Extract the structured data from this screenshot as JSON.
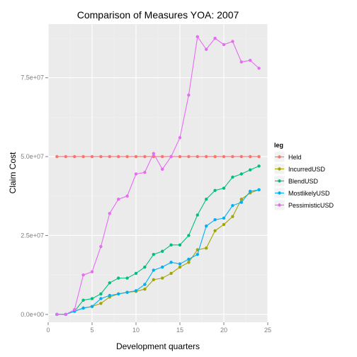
{
  "chart_data": {
    "type": "line",
    "title": "Comparison of Measures  YOA: 2007",
    "xlabel": "Development quarters",
    "ylabel": "Claim Cost",
    "xlim": [
      0,
      25
    ],
    "ylim": [
      -2500000,
      92000000
    ],
    "x_ticks": [
      0,
      5,
      10,
      15,
      20,
      25
    ],
    "x_tick_labels": [
      "0",
      "5",
      "10",
      "15",
      "20",
      "25"
    ],
    "y_ticks": [
      0,
      25000000,
      50000000,
      75000000
    ],
    "y_tick_labels": [
      "0.0e+00",
      "2.5e+07",
      "5.0e+07",
      "7.5e+07"
    ],
    "grid": true,
    "legend": {
      "title": "leg",
      "position": "right"
    },
    "x": [
      1,
      2,
      3,
      4,
      5,
      6,
      7,
      8,
      9,
      10,
      11,
      12,
      13,
      14,
      15,
      16,
      17,
      18,
      19,
      20,
      21,
      22,
      23,
      24
    ],
    "series": [
      {
        "name": "Held",
        "color": "#F8766D",
        "values": [
          50000000,
          50000000,
          50000000,
          50000000,
          50000000,
          50000000,
          50000000,
          50000000,
          50000000,
          50000000,
          50000000,
          50000000,
          50000000,
          50000000,
          50000000,
          50000000,
          50000000,
          50000000,
          50000000,
          50000000,
          50000000,
          50000000,
          50000000,
          50000000
        ]
      },
      {
        "name": "IncurredUSD",
        "color": "#A3A500",
        "values": [
          0,
          0,
          1000000,
          2000000,
          2500000,
          3500000,
          5500000,
          6500000,
          7000000,
          7300000,
          8000000,
          11000000,
          11500000,
          13000000,
          15000000,
          16500000,
          20500000,
          21000000,
          26500000,
          28500000,
          31000000,
          36500000,
          38500000,
          39500000
        ]
      },
      {
        "name": "BlendUSD",
        "color": "#00BF7D",
        "values": [
          0,
          0,
          1000000,
          4500000,
          5000000,
          6500000,
          10000000,
          11500000,
          11500000,
          13000000,
          15000000,
          19000000,
          20000000,
          22000000,
          22000000,
          25000000,
          31500000,
          36500000,
          39300000,
          40000000,
          43500000,
          44500000,
          45800000,
          47000000
        ]
      },
      {
        "name": "MostlikelyUSD",
        "color": "#00B0F6",
        "values": [
          0,
          0,
          1000000,
          2000000,
          2500000,
          5000000,
          6000000,
          6500000,
          7000000,
          7500000,
          9500000,
          14000000,
          15000000,
          16500000,
          16000000,
          17500000,
          19000000,
          28000000,
          30000000,
          30500000,
          34500000,
          35500000,
          39000000,
          39500000
        ]
      },
      {
        "name": "PessimisticUSD",
        "color": "#E76BF3",
        "values": [
          0,
          0,
          1500000,
          12500000,
          13500000,
          21500000,
          32000000,
          36500000,
          37500000,
          44500000,
          45000000,
          51000000,
          46000000,
          50000000,
          56000000,
          69500000,
          88000000,
          84000000,
          87500000,
          85500000,
          86500000,
          80000000,
          80500000,
          78000000
        ]
      }
    ]
  }
}
